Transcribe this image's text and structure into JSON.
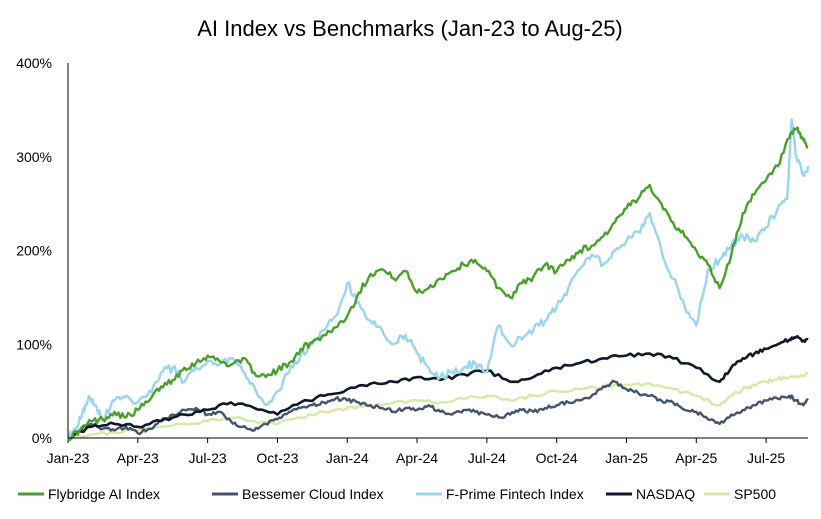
{
  "chart_data": {
    "type": "line",
    "title": "AI Index vs Benchmarks (Jan-23 to Aug-25)",
    "xlabel": "",
    "ylabel": "",
    "ylim": [
      0,
      400
    ],
    "y_ticks": [
      "0%",
      "100%",
      "200%",
      "300%",
      "400%"
    ],
    "x_ticks": [
      "Jan-23",
      "Apr-23",
      "Jul-23",
      "Oct-23",
      "Jan-24",
      "Apr-24",
      "Jul-24",
      "Oct-24",
      "Jan-25",
      "Apr-25",
      "Jul-25"
    ],
    "x_range_months": [
      0,
      31.8
    ],
    "legend_position": "bottom",
    "series": [
      {
        "name": "Flybridge AI Index",
        "color": "#4aa02c",
        "points": [
          [
            0,
            0
          ],
          [
            0.5,
            8
          ],
          [
            1,
            18
          ],
          [
            1.5,
            20
          ],
          [
            2,
            28
          ],
          [
            2.5,
            22
          ],
          [
            3,
            30
          ],
          [
            3.5,
            40
          ],
          [
            4,
            55
          ],
          [
            4.5,
            62
          ],
          [
            5,
            75
          ],
          [
            5.5,
            80
          ],
          [
            6,
            88
          ],
          [
            6.5,
            82
          ],
          [
            7,
            78
          ],
          [
            7.5,
            85
          ],
          [
            8,
            70
          ],
          [
            8.5,
            65
          ],
          [
            9,
            72
          ],
          [
            9.5,
            80
          ],
          [
            10,
            95
          ],
          [
            10.5,
            102
          ],
          [
            11,
            110
          ],
          [
            11.5,
            118
          ],
          [
            12,
            130
          ],
          [
            12.5,
            155
          ],
          [
            13,
            175
          ],
          [
            13.5,
            180
          ],
          [
            14,
            170
          ],
          [
            14.5,
            178
          ],
          [
            15,
            155
          ],
          [
            15.5,
            160
          ],
          [
            16,
            170
          ],
          [
            16.5,
            178
          ],
          [
            17,
            185
          ],
          [
            17.5,
            190
          ],
          [
            18,
            178
          ],
          [
            18.5,
            160
          ],
          [
            19,
            150
          ],
          [
            19.5,
            165
          ],
          [
            20,
            172
          ],
          [
            20.5,
            185
          ],
          [
            21,
            178
          ],
          [
            21.5,
            190
          ],
          [
            22,
            200
          ],
          [
            22.5,
            205
          ],
          [
            23,
            215
          ],
          [
            23.5,
            230
          ],
          [
            24,
            245
          ],
          [
            24.5,
            255
          ],
          [
            25,
            270
          ],
          [
            25.5,
            250
          ],
          [
            26,
            230
          ],
          [
            26.5,
            215
          ],
          [
            27,
            200
          ],
          [
            27.5,
            185
          ],
          [
            28,
            160
          ],
          [
            28.5,
            195
          ],
          [
            29,
            240
          ],
          [
            29.5,
            260
          ],
          [
            30,
            275
          ],
          [
            30.5,
            290
          ],
          [
            31,
            320
          ],
          [
            31.3,
            330
          ],
          [
            31.6,
            318
          ],
          [
            31.8,
            310
          ]
        ]
      },
      {
        "name": "Bessemer Cloud Index",
        "color": "#44546a",
        "points": [
          [
            0,
            0
          ],
          [
            0.5,
            8
          ],
          [
            1,
            15
          ],
          [
            1.5,
            10
          ],
          [
            2,
            8
          ],
          [
            2.5,
            12
          ],
          [
            3,
            5
          ],
          [
            3.5,
            10
          ],
          [
            4,
            18
          ],
          [
            4.5,
            25
          ],
          [
            5,
            30
          ],
          [
            5.5,
            32
          ],
          [
            6,
            25
          ],
          [
            6.5,
            28
          ],
          [
            7,
            18
          ],
          [
            7.5,
            12
          ],
          [
            8,
            8
          ],
          [
            8.5,
            15
          ],
          [
            9,
            20
          ],
          [
            9.5,
            28
          ],
          [
            10,
            32
          ],
          [
            10.5,
            35
          ],
          [
            11,
            38
          ],
          [
            11.5,
            42
          ],
          [
            12,
            40
          ],
          [
            12.5,
            38
          ],
          [
            13,
            35
          ],
          [
            13.5,
            32
          ],
          [
            14,
            28
          ],
          [
            14.5,
            32
          ],
          [
            15,
            30
          ],
          [
            15.5,
            35
          ],
          [
            16,
            28
          ],
          [
            16.5,
            25
          ],
          [
            17,
            30
          ],
          [
            17.5,
            28
          ],
          [
            18,
            25
          ],
          [
            18.5,
            22
          ],
          [
            19,
            25
          ],
          [
            19.5,
            30
          ],
          [
            20,
            28
          ],
          [
            20.5,
            32
          ],
          [
            21,
            35
          ],
          [
            21.5,
            38
          ],
          [
            22,
            40
          ],
          [
            22.5,
            45
          ],
          [
            23,
            55
          ],
          [
            23.5,
            60
          ],
          [
            24,
            52
          ],
          [
            24.5,
            48
          ],
          [
            25,
            45
          ],
          [
            25.5,
            40
          ],
          [
            26,
            38
          ],
          [
            26.5,
            30
          ],
          [
            27,
            28
          ],
          [
            27.5,
            20
          ],
          [
            28,
            15
          ],
          [
            28.5,
            25
          ],
          [
            29,
            30
          ],
          [
            29.5,
            35
          ],
          [
            30,
            40
          ],
          [
            30.5,
            42
          ],
          [
            31,
            45
          ],
          [
            31.3,
            40
          ],
          [
            31.6,
            35
          ],
          [
            31.8,
            40
          ]
        ]
      },
      {
        "name": "F-Prime Fintech Index",
        "color": "#9bd4ef",
        "points": [
          [
            0,
            0
          ],
          [
            0.3,
            10
          ],
          [
            0.6,
            25
          ],
          [
            0.9,
            45
          ],
          [
            1.2,
            35
          ],
          [
            1.5,
            20
          ],
          [
            2,
            40
          ],
          [
            2.5,
            45
          ],
          [
            3,
            38
          ],
          [
            3.5,
            50
          ],
          [
            4,
            70
          ],
          [
            4.5,
            75
          ],
          [
            5,
            60
          ],
          [
            5.5,
            75
          ],
          [
            6,
            82
          ],
          [
            6.5,
            78
          ],
          [
            7,
            85
          ],
          [
            7.5,
            72
          ],
          [
            8,
            55
          ],
          [
            8.5,
            35
          ],
          [
            9,
            50
          ],
          [
            9.5,
            70
          ],
          [
            10,
            88
          ],
          [
            10.5,
            100
          ],
          [
            11,
            115
          ],
          [
            11.5,
            130
          ],
          [
            12,
            165
          ],
          [
            12.5,
            145
          ],
          [
            13,
            125
          ],
          [
            13.5,
            115
          ],
          [
            14,
            100
          ],
          [
            14.5,
            110
          ],
          [
            15,
            90
          ],
          [
            15.5,
            75
          ],
          [
            16,
            65
          ],
          [
            16.5,
            70
          ],
          [
            17,
            75
          ],
          [
            17.5,
            80
          ],
          [
            18,
            70
          ],
          [
            18.5,
            120
          ],
          [
            19,
            100
          ],
          [
            19.5,
            105
          ],
          [
            20,
            115
          ],
          [
            20.5,
            125
          ],
          [
            21,
            140
          ],
          [
            21.5,
            160
          ],
          [
            22,
            180
          ],
          [
            22.5,
            195
          ],
          [
            23,
            185
          ],
          [
            23.5,
            200
          ],
          [
            24,
            210
          ],
          [
            24.5,
            220
          ],
          [
            25,
            240
          ],
          [
            25.5,
            200
          ],
          [
            26,
            170
          ],
          [
            26.5,
            140
          ],
          [
            27,
            120
          ],
          [
            27.5,
            180
          ],
          [
            28,
            190
          ],
          [
            28.5,
            205
          ],
          [
            29,
            215
          ],
          [
            29.5,
            210
          ],
          [
            30,
            225
          ],
          [
            30.5,
            245
          ],
          [
            30.9,
            255
          ],
          [
            31.1,
            340
          ],
          [
            31.3,
            300
          ],
          [
            31.6,
            280
          ],
          [
            31.8,
            290
          ]
        ]
      },
      {
        "name": "NASDAQ",
        "color": "#0d1a2b",
        "points": [
          [
            0,
            0
          ],
          [
            1,
            12
          ],
          [
            2,
            15
          ],
          [
            3,
            12
          ],
          [
            4,
            18
          ],
          [
            5,
            25
          ],
          [
            6,
            30
          ],
          [
            7,
            38
          ],
          [
            8,
            32
          ],
          [
            9,
            25
          ],
          [
            10,
            38
          ],
          [
            11,
            45
          ],
          [
            12,
            52
          ],
          [
            13,
            58
          ],
          [
            14,
            60
          ],
          [
            15,
            65
          ],
          [
            16,
            62
          ],
          [
            17,
            68
          ],
          [
            18,
            72
          ],
          [
            19,
            60
          ],
          [
            20,
            65
          ],
          [
            21,
            75
          ],
          [
            22,
            80
          ],
          [
            23,
            85
          ],
          [
            24,
            88
          ],
          [
            25,
            90
          ],
          [
            26,
            85
          ],
          [
            27,
            75
          ],
          [
            28,
            60
          ],
          [
            28.5,
            75
          ],
          [
            29,
            85
          ],
          [
            29.5,
            90
          ],
          [
            30,
            95
          ],
          [
            30.5,
            100
          ],
          [
            31,
            105
          ],
          [
            31.3,
            108
          ],
          [
            31.6,
            104
          ],
          [
            31.8,
            105
          ]
        ]
      },
      {
        "name": "SP500",
        "color": "#d9e8a9",
        "points": [
          [
            0,
            0
          ],
          [
            1,
            4
          ],
          [
            2,
            6
          ],
          [
            3,
            8
          ],
          [
            4,
            12
          ],
          [
            5,
            15
          ],
          [
            6,
            18
          ],
          [
            7,
            22
          ],
          [
            8,
            18
          ],
          [
            9,
            15
          ],
          [
            10,
            22
          ],
          [
            11,
            28
          ],
          [
            12,
            32
          ],
          [
            13,
            35
          ],
          [
            14,
            38
          ],
          [
            15,
            40
          ],
          [
            16,
            38
          ],
          [
            17,
            42
          ],
          [
            18,
            45
          ],
          [
            19,
            40
          ],
          [
            20,
            45
          ],
          [
            21,
            50
          ],
          [
            22,
            52
          ],
          [
            23,
            55
          ],
          [
            24,
            57
          ],
          [
            25,
            58
          ],
          [
            26,
            52
          ],
          [
            27,
            45
          ],
          [
            28,
            35
          ],
          [
            28.5,
            45
          ],
          [
            29,
            52
          ],
          [
            29.5,
            56
          ],
          [
            30,
            60
          ],
          [
            30.5,
            63
          ],
          [
            31,
            65
          ],
          [
            31.5,
            67
          ],
          [
            31.8,
            68
          ]
        ]
      }
    ]
  }
}
